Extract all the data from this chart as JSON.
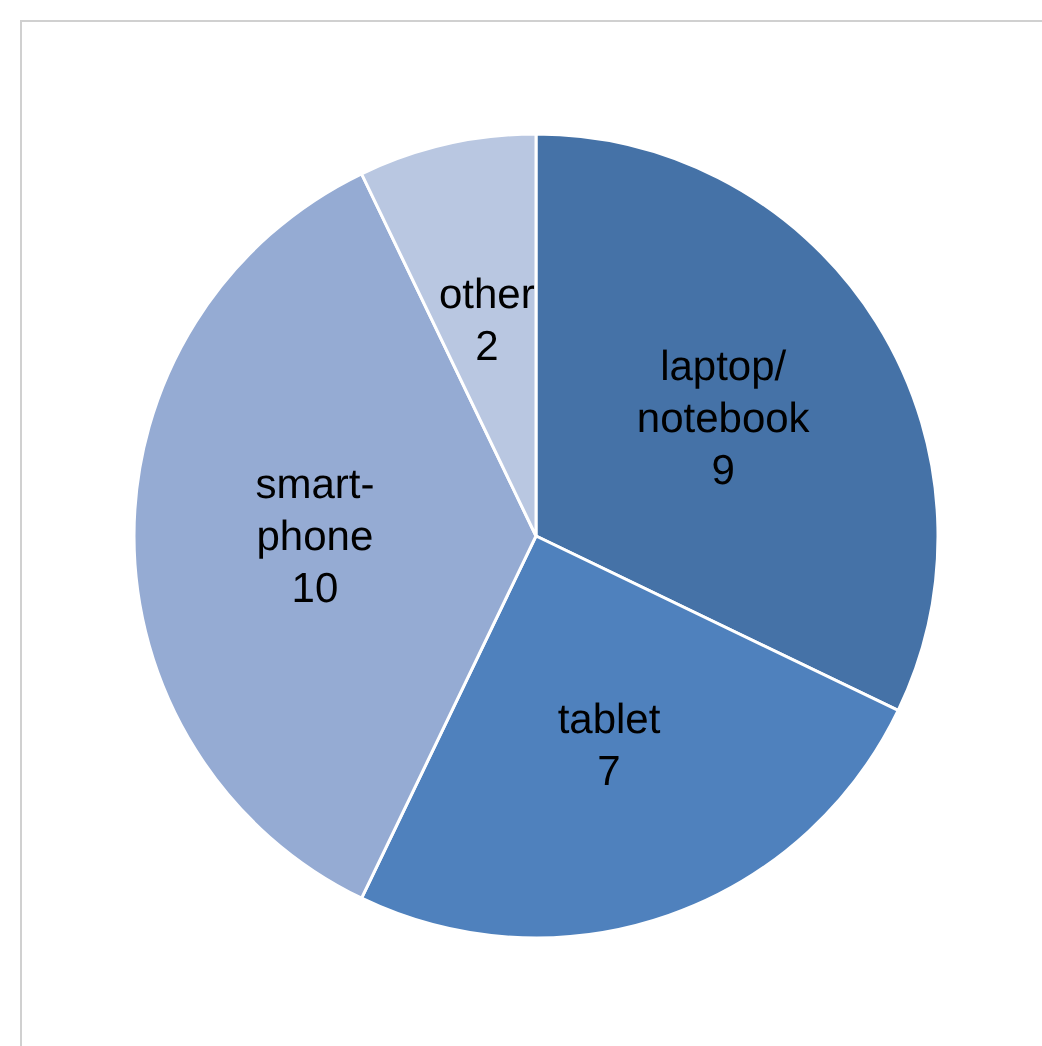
{
  "chart_data": {
    "type": "pie",
    "categories": [
      "laptop/notebook",
      "tablet",
      "smart-phone",
      "other"
    ],
    "values": [
      9,
      7,
      10,
      2
    ],
    "colors": [
      "#4572a7",
      "#4f81bd",
      "#95abd3",
      "#b9c7e1"
    ],
    "data_labels": true,
    "legend": false
  }
}
